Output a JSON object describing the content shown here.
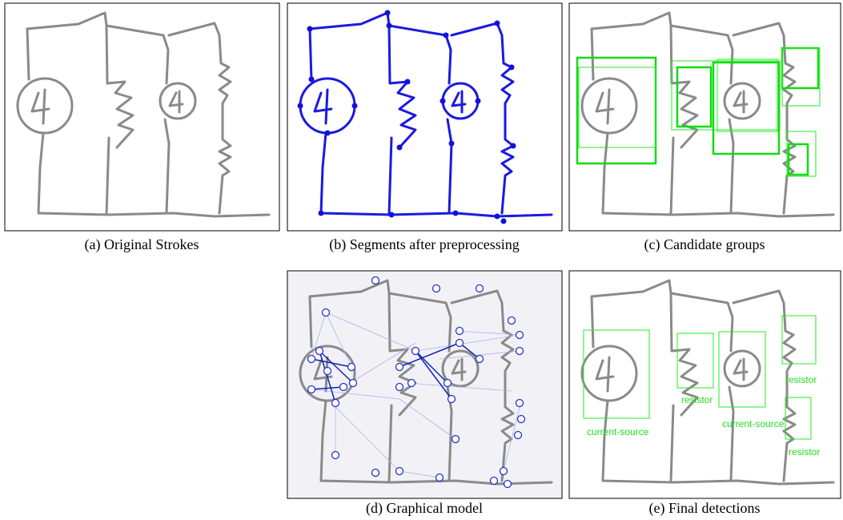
{
  "captions": [
    "(a) Original Strokes",
    "(b) Segments after preprocessing",
    "(c) Candidate groups",
    "(d) Graphical model",
    "(e) Final detections"
  ],
  "detections": [
    {
      "label": "current-source"
    },
    {
      "label": "resistor"
    },
    {
      "label": "current-source"
    },
    {
      "label": "resistor"
    },
    {
      "label": "resistor"
    }
  ]
}
